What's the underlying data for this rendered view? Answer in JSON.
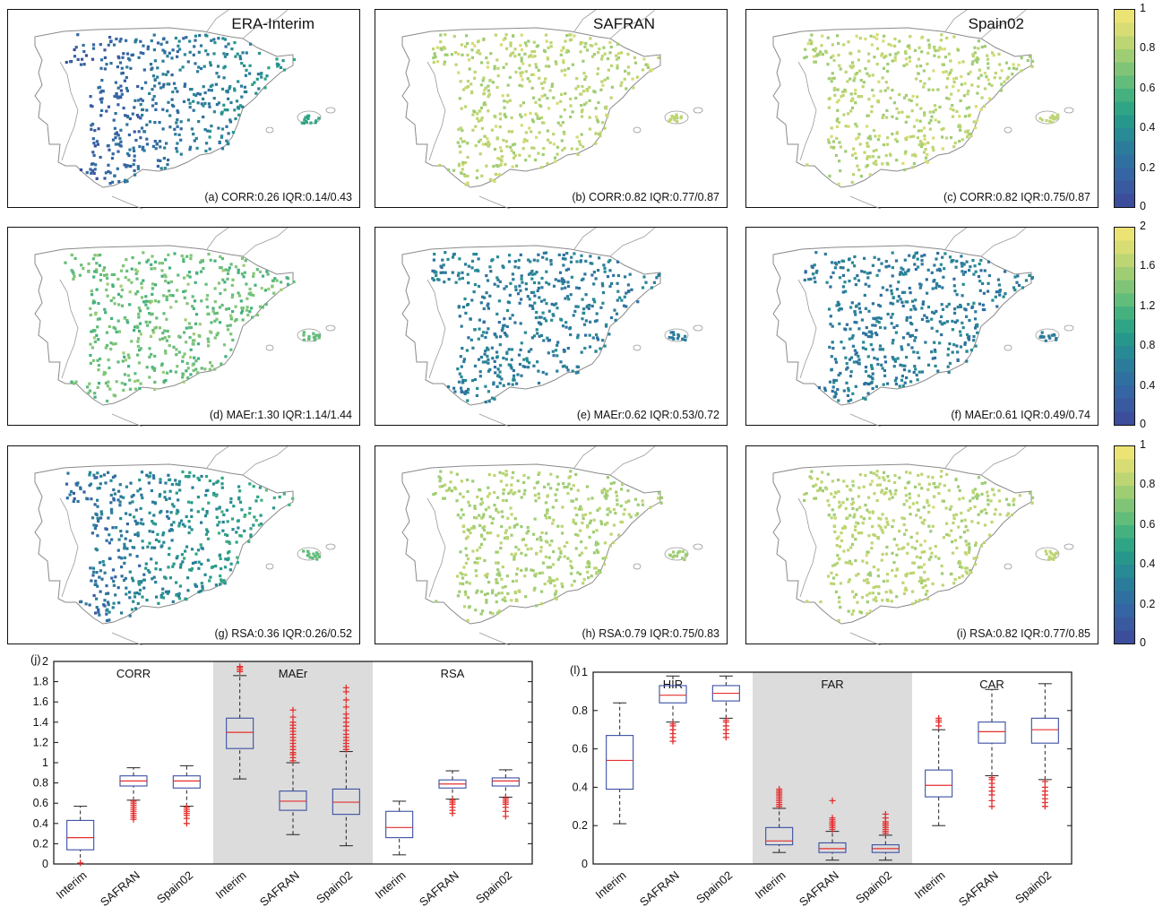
{
  "maps": {
    "panels": [
      {
        "id": "a",
        "title": "ERA-Interim",
        "stat": "(a) CORR:0.26 IQR:0.14/0.43",
        "level": 0.26,
        "spread": 0.1
      },
      {
        "id": "b",
        "title": "SAFRAN",
        "stat": "(b) CORR:0.82 IQR:0.77/0.87",
        "level": 0.82,
        "spread": 0.06
      },
      {
        "id": "c",
        "title": "Spain02",
        "stat": "(c) CORR:0.82 IQR:0.75/0.87",
        "level": 0.82,
        "spread": 0.07
      },
      {
        "id": "d",
        "title": "",
        "stat": "(d) MAEr:1.30 IQR:1.14/1.44",
        "level": 0.65,
        "spread": 0.1
      },
      {
        "id": "e",
        "title": "",
        "stat": "(e) MAEr:0.62 IQR:0.53/0.72",
        "level": 0.31,
        "spread": 0.07
      },
      {
        "id": "f",
        "title": "",
        "stat": "(f) MAEr:0.61 IQR:0.49/0.74",
        "level": 0.3,
        "spread": 0.08
      },
      {
        "id": "g",
        "title": "",
        "stat": "(g) RSA:0.36 IQR:0.26/0.52",
        "level": 0.36,
        "spread": 0.12
      },
      {
        "id": "h",
        "title": "",
        "stat": "(h) RSA:0.79 IQR:0.75/0.83",
        "level": 0.79,
        "spread": 0.05
      },
      {
        "id": "i",
        "title": "",
        "stat": "(i) RSA:0.82 IQR:0.77/0.85",
        "level": 0.82,
        "spread": 0.05
      }
    ],
    "colorbars": [
      {
        "ticks": [
          "1",
          "0.8",
          "0.6",
          "0.4",
          "0.2",
          "0"
        ]
      },
      {
        "ticks": [
          "2",
          "1.6",
          "1.2",
          "0.8",
          "0.4",
          "0"
        ]
      },
      {
        "ticks": [
          "1",
          "0.8",
          "0.6",
          "0.4",
          "0.2",
          "0"
        ]
      }
    ],
    "colormap": [
      "#3b4d9b",
      "#3a5aa0",
      "#3565a3",
      "#2f70a0",
      "#2b7c9b",
      "#288a94",
      "#27978c",
      "#2fa585",
      "#45b17f",
      "#62bc7a",
      "#80c577",
      "#9fcd74",
      "#bdd573",
      "#d7dc73",
      "#ece375"
    ]
  },
  "chart_data": [
    {
      "type": "box",
      "panel_label": "(j)",
      "groups": [
        {
          "label": "CORR",
          "shaded": false
        },
        {
          "label": "MAEr",
          "shaded": true
        },
        {
          "label": "RSA",
          "shaded": false
        }
      ],
      "categories": [
        "Interim",
        "SAFRAN",
        "Spain02",
        "Interim",
        "SAFRAN",
        "Spain02",
        "Interim",
        "SAFRAN",
        "Spain02"
      ],
      "boxes": [
        {
          "whisker_low": 0.0,
          "q1": 0.14,
          "median": 0.26,
          "q3": 0.43,
          "whisker_high": 0.57,
          "outliers": [
            0.01
          ]
        },
        {
          "whisker_low": 0.63,
          "q1": 0.77,
          "median": 0.82,
          "q3": 0.87,
          "whisker_high": 0.95,
          "outliers": [
            0.44,
            0.46,
            0.48,
            0.5,
            0.52,
            0.54,
            0.56,
            0.58,
            0.6,
            0.62
          ]
        },
        {
          "whisker_low": 0.57,
          "q1": 0.75,
          "median": 0.82,
          "q3": 0.87,
          "whisker_high": 0.97,
          "outliers": [
            0.4,
            0.45,
            0.48,
            0.5,
            0.52,
            0.54,
            0.56
          ]
        },
        {
          "whisker_low": 0.84,
          "q1": 1.14,
          "median": 1.3,
          "q3": 1.44,
          "whisker_high": 1.86,
          "outliers": [
            1.9,
            1.92,
            1.94,
            1.95
          ]
        },
        {
          "whisker_low": 0.29,
          "q1": 0.53,
          "median": 0.62,
          "q3": 0.72,
          "whisker_high": 1.0,
          "outliers": [
            1.02,
            1.05,
            1.08,
            1.1,
            1.13,
            1.16,
            1.19,
            1.22,
            1.25,
            1.28,
            1.31,
            1.34,
            1.37,
            1.4,
            1.45,
            1.52
          ]
        },
        {
          "whisker_low": 0.18,
          "q1": 0.49,
          "median": 0.61,
          "q3": 0.74,
          "whisker_high": 1.11,
          "outliers": [
            1.13,
            1.16,
            1.19,
            1.22,
            1.25,
            1.28,
            1.32,
            1.36,
            1.4,
            1.44,
            1.48,
            1.55,
            1.62,
            1.7,
            1.74
          ]
        },
        {
          "whisker_low": 0.09,
          "q1": 0.26,
          "median": 0.36,
          "q3": 0.52,
          "whisker_high": 0.62,
          "outliers": []
        },
        {
          "whisker_low": 0.64,
          "q1": 0.75,
          "median": 0.79,
          "q3": 0.83,
          "whisker_high": 0.92,
          "outliers": [
            0.5,
            0.53,
            0.56,
            0.59,
            0.61,
            0.63
          ]
        },
        {
          "whisker_low": 0.66,
          "q1": 0.77,
          "median": 0.82,
          "q3": 0.85,
          "whisker_high": 0.93,
          "outliers": [
            0.47,
            0.52,
            0.56,
            0.59,
            0.61,
            0.63,
            0.65
          ]
        }
      ],
      "yticks": [
        "0",
        "0.2",
        "0.4",
        "0.6",
        "0.8",
        "1",
        "1.2",
        "1.4",
        "1.6",
        "1.8",
        "2"
      ],
      "ylim": [
        0,
        2
      ]
    },
    {
      "type": "box",
      "panel_label": "(l)",
      "groups": [
        {
          "label": "HIR",
          "shaded": false
        },
        {
          "label": "FAR",
          "shaded": true
        },
        {
          "label": "CAR",
          "shaded": false
        }
      ],
      "categories": [
        "Interim",
        "SAFRAN",
        "Spain02",
        "Interim",
        "SAFRAN",
        "Spain02",
        "Interim",
        "SAFRAN",
        "Spain02"
      ],
      "boxes": [
        {
          "whisker_low": 0.21,
          "q1": 0.39,
          "median": 0.54,
          "q3": 0.67,
          "whisker_high": 0.84,
          "outliers": []
        },
        {
          "whisker_low": 0.74,
          "q1": 0.84,
          "median": 0.88,
          "q3": 0.93,
          "whisker_high": 0.98,
          "outliers": [
            0.64,
            0.66,
            0.68,
            0.7,
            0.72,
            0.73
          ]
        },
        {
          "whisker_low": 0.76,
          "q1": 0.85,
          "median": 0.89,
          "q3": 0.93,
          "whisker_high": 0.98,
          "outliers": [
            0.66,
            0.68,
            0.7,
            0.72,
            0.74,
            0.75
          ]
        },
        {
          "whisker_low": 0.06,
          "q1": 0.1,
          "median": 0.12,
          "q3": 0.19,
          "whisker_high": 0.29,
          "outliers": [
            0.3,
            0.31,
            0.32,
            0.33,
            0.34,
            0.35,
            0.36,
            0.37,
            0.38,
            0.39
          ]
        },
        {
          "whisker_low": 0.02,
          "q1": 0.06,
          "median": 0.08,
          "q3": 0.11,
          "whisker_high": 0.17,
          "outliers": [
            0.18,
            0.19,
            0.2,
            0.21,
            0.22,
            0.23,
            0.24,
            0.33
          ]
        },
        {
          "whisker_low": 0.02,
          "q1": 0.06,
          "median": 0.08,
          "q3": 0.1,
          "whisker_high": 0.15,
          "outliers": [
            0.16,
            0.17,
            0.18,
            0.19,
            0.2,
            0.21,
            0.22,
            0.24,
            0.26
          ]
        },
        {
          "whisker_low": 0.2,
          "q1": 0.35,
          "median": 0.41,
          "q3": 0.49,
          "whisker_high": 0.7,
          "outliers": [
            0.72,
            0.74,
            0.75,
            0.76
          ]
        },
        {
          "whisker_low": 0.46,
          "q1": 0.63,
          "median": 0.69,
          "q3": 0.74,
          "whisker_high": 0.91,
          "outliers": [
            0.3,
            0.33,
            0.36,
            0.38,
            0.4,
            0.42,
            0.44,
            0.45
          ]
        },
        {
          "whisker_low": 0.44,
          "q1": 0.63,
          "median": 0.7,
          "q3": 0.76,
          "whisker_high": 0.94,
          "outliers": [
            0.3,
            0.32,
            0.34,
            0.36,
            0.38,
            0.4,
            0.43
          ]
        }
      ],
      "yticks": [
        "0",
        "0.2",
        "0.4",
        "0.6",
        "0.8",
        "1"
      ],
      "ylim": [
        0,
        1
      ]
    }
  ],
  "style": {
    "box_color": "#3a4fa3",
    "median_color": "#e53030",
    "outlier_color": "#e53030",
    "shade_color": "#dcdcdc"
  }
}
